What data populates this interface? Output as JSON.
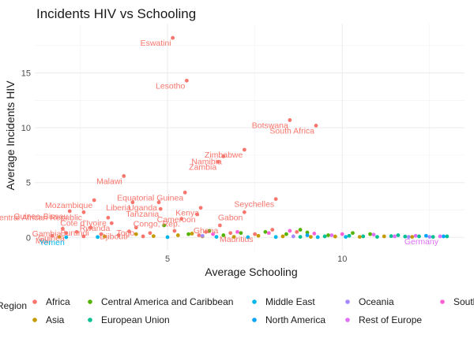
{
  "chart_data": {
    "type": "scatter",
    "title": "Incidents HIV vs Schooling",
    "xlabel": "Average Schooling",
    "ylabel": "Average Incidents HIV",
    "xlim": [
      1.2,
      13.5
    ],
    "ylim": [
      -1.2,
      19.5
    ],
    "x_ticks": [
      5,
      10
    ],
    "y_ticks": [
      0,
      5,
      10,
      15
    ],
    "grid": true,
    "legend_position": "bottom",
    "legend_title": "Region",
    "series": [
      {
        "name": "Africa",
        "color": "#F8766D",
        "points": [
          {
            "x": 5.15,
            "y": 18.2,
            "label": "Eswatini"
          },
          {
            "x": 5.55,
            "y": 14.3,
            "label": "Lesotho"
          },
          {
            "x": 8.5,
            "y": 10.7,
            "label": "Botswana"
          },
          {
            "x": 9.25,
            "y": 10.2,
            "label": "South Africa"
          },
          {
            "x": 7.2,
            "y": 8.0,
            "label": "Zimbabwe"
          },
          {
            "x": 6.6,
            "y": 7.4,
            "label": "Namibia"
          },
          {
            "x": 6.45,
            "y": 6.9,
            "label": "Zambia"
          },
          {
            "x": 3.75,
            "y": 5.6,
            "label": "Malawi"
          },
          {
            "x": 5.5,
            "y": 4.1,
            "label": "Equatorial Guinea"
          },
          {
            "x": 8.1,
            "y": 3.5,
            "label": "Seychelles"
          },
          {
            "x": 2.9,
            "y": 3.4,
            "label": "Mozambique"
          },
          {
            "x": 4.75,
            "y": 3.2,
            "label": "Uganda"
          },
          {
            "x": 4.0,
            "y": 3.2,
            "label": "Liberia"
          },
          {
            "x": 5.95,
            "y": 2.7,
            "label": "Kenya"
          },
          {
            "x": 4.8,
            "y": 2.6,
            "label": "Tanzania"
          },
          {
            "x": 2.2,
            "y": 2.4,
            "label": "Guinea-Bissau"
          },
          {
            "x": 2.6,
            "y": 2.3,
            "label": "Central African Republic"
          },
          {
            "x": 7.2,
            "y": 2.3,
            "label": "Gabon"
          },
          {
            "x": 5.85,
            "y": 2.1,
            "label": "Cameroon"
          },
          {
            "x": 3.3,
            "y": 1.8,
            "label": "Cote d'Ivoire"
          },
          {
            "x": 5.4,
            "y": 1.7,
            "label": "Congo, Rep."
          },
          {
            "x": 3.4,
            "y": 1.3,
            "label": "Rwanda"
          },
          {
            "x": 4.1,
            "y": 0.9,
            "label": "Togo"
          },
          {
            "x": 6.5,
            "y": 1.1,
            "label": "Ghana"
          },
          {
            "x": 2.0,
            "y": 0.8,
            "label": "Gambia"
          },
          {
            "x": 2.1,
            "y": 0.4,
            "label": "Guinea"
          },
          {
            "x": 3.9,
            "y": 0.55,
            "label": "Djibouti"
          },
          {
            "x": 1.7,
            "y": 0.15,
            "label": "Mali"
          },
          {
            "x": 2.8,
            "y": 0.9,
            "label": "Burundi"
          },
          {
            "x": 7.5,
            "y": 0.3,
            "label": "Mauritius"
          },
          {
            "x": 2.4,
            "y": 0.5
          },
          {
            "x": 3.1,
            "y": 0.3
          },
          {
            "x": 4.5,
            "y": 0.4
          },
          {
            "x": 3.6,
            "y": 0.2
          },
          {
            "x": 5.2,
            "y": 0.6
          },
          {
            "x": 6.1,
            "y": 0.5
          },
          {
            "x": 8.0,
            "y": 0.7
          },
          {
            "x": 8.7,
            "y": 0.5
          },
          {
            "x": 2.6,
            "y": 0.1
          },
          {
            "x": 4.3,
            "y": 0.1
          },
          {
            "x": 5.9,
            "y": 0.2
          },
          {
            "x": 6.8,
            "y": 0.4
          }
        ]
      },
      {
        "name": "Asia",
        "color": "#C49A00",
        "points": [
          {
            "x": 1.9,
            "y": 0.05
          },
          {
            "x": 3.2,
            "y": 0.08
          },
          {
            "x": 4.6,
            "y": 0.12
          },
          {
            "x": 5.3,
            "y": 0.2
          },
          {
            "x": 6.0,
            "y": 0.1
          },
          {
            "x": 6.9,
            "y": 0.05
          },
          {
            "x": 7.6,
            "y": 0.15
          },
          {
            "x": 8.3,
            "y": 0.1
          },
          {
            "x": 9.1,
            "y": 0.05
          },
          {
            "x": 9.8,
            "y": 0.08
          },
          {
            "x": 10.5,
            "y": 0.05
          },
          {
            "x": 11.2,
            "y": 0.1
          },
          {
            "x": 12.0,
            "y": 0.05
          },
          {
            "x": 4.1,
            "y": 0.3
          },
          {
            "x": 5.7,
            "y": 0.35
          }
        ]
      },
      {
        "name": "Central America and Caribbean",
        "color": "#53B400",
        "points": [
          {
            "x": 4.9,
            "y": 1.1
          },
          {
            "x": 6.2,
            "y": 0.6
          },
          {
            "x": 7.1,
            "y": 0.4
          },
          {
            "x": 7.8,
            "y": 0.5
          },
          {
            "x": 8.4,
            "y": 0.3
          },
          {
            "x": 9.0,
            "y": 0.45
          },
          {
            "x": 9.6,
            "y": 0.2
          },
          {
            "x": 10.3,
            "y": 0.4
          },
          {
            "x": 5.6,
            "y": 0.3
          },
          {
            "x": 8.8,
            "y": 0.7
          },
          {
            "x": 6.6,
            "y": 0.2
          },
          {
            "x": 10.8,
            "y": 0.3
          }
        ]
      },
      {
        "name": "European Union",
        "color": "#00C094",
        "points": [
          {
            "x": 9.5,
            "y": 0.1
          },
          {
            "x": 10.2,
            "y": 0.15
          },
          {
            "x": 10.6,
            "y": 0.1
          },
          {
            "x": 11.0,
            "y": 0.05
          },
          {
            "x": 11.4,
            "y": 0.12
          },
          {
            "x": 11.8,
            "y": 0.08
          },
          {
            "x": 12.2,
            "y": 0.1
          },
          {
            "x": 12.6,
            "y": 0.05
          },
          {
            "x": 13.0,
            "y": 0.1
          },
          {
            "x": 8.8,
            "y": 0.05
          },
          {
            "x": 11.6,
            "y": 0.2
          }
        ]
      },
      {
        "name": "Middle East",
        "color": "#00B6EB",
        "points": [
          {
            "x": 2.1,
            "y": 0.02,
            "label": "Yemen"
          },
          {
            "x": 3.0,
            "y": 0.04
          },
          {
            "x": 5.0,
            "y": 0.03
          },
          {
            "x": 6.4,
            "y": 0.05
          },
          {
            "x": 7.3,
            "y": 0.02
          },
          {
            "x": 8.1,
            "y": 0.04
          },
          {
            "x": 9.3,
            "y": 0.03
          },
          {
            "x": 10.1,
            "y": 0.05
          }
        ]
      },
      {
        "name": "North America",
        "color": "#06A4FF",
        "points": [
          {
            "x": 12.4,
            "y": 0.15
          },
          {
            "x": 12.9,
            "y": 0.1
          },
          {
            "x": 9.0,
            "y": 0.2
          }
        ]
      },
      {
        "name": "Oceania",
        "color": "#A58AFF",
        "points": [
          {
            "x": 8.6,
            "y": 0.1
          },
          {
            "x": 11.9,
            "y": 0.05
          },
          {
            "x": 12.5,
            "y": 0.05
          },
          {
            "x": 6.0,
            "y": 0.15
          }
        ]
      },
      {
        "name": "Rest of Europe",
        "color": "#DF70F8",
        "points": [
          {
            "x": 9.7,
            "y": 0.2
          },
          {
            "x": 10.9,
            "y": 0.25
          },
          {
            "x": 11.5,
            "y": 0.1
          },
          {
            "x": 12.1,
            "y": 0.15
          },
          {
            "x": 12.8,
            "y": 0.1,
            "label": "Germany"
          }
        ]
      },
      {
        "name": "South America",
        "color": "#FB61D7",
        "points": [
          {
            "x": 7.0,
            "y": 0.5
          },
          {
            "x": 7.9,
            "y": 0.4
          },
          {
            "x": 8.5,
            "y": 0.6
          },
          {
            "x": 9.2,
            "y": 0.35
          },
          {
            "x": 10.0,
            "y": 0.3
          },
          {
            "x": 6.3,
            "y": 0.3
          }
        ]
      }
    ],
    "legend_entries": [
      "Africa",
      "Central America and Caribbean",
      "Middle East",
      "Oceania",
      "South America",
      "Asia",
      "European Union",
      "North America",
      "Rest of Europe"
    ]
  }
}
